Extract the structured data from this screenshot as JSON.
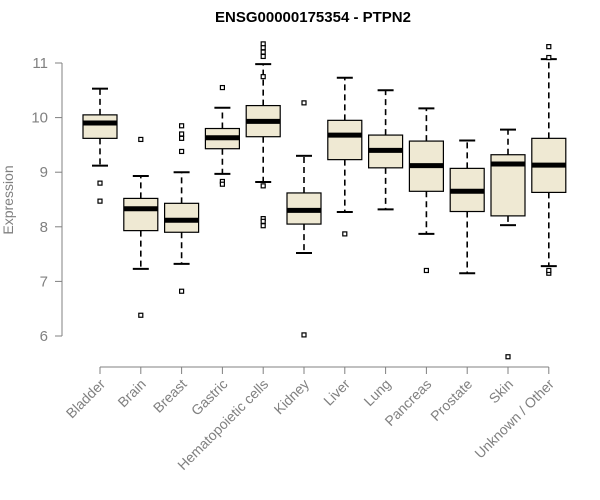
{
  "chart_data": {
    "type": "boxplot",
    "title": "ENSG00000175354 - PTPN2",
    "xlabel": "",
    "ylabel": "Expression",
    "ylim": [
      5.5,
      11.5
    ],
    "yticks": [
      6,
      7,
      8,
      9,
      10,
      11
    ],
    "box_fill": "#efe9d3",
    "axis_color": "#808080",
    "categories": [
      "Bladder",
      "Brain",
      "Breast",
      "Gastric",
      "Hematopoietic cells",
      "Kidney",
      "Liver",
      "Lung",
      "Pancreas",
      "Prostate",
      "Skin",
      "Unknown / Other"
    ],
    "series": [
      {
        "name": "Bladder",
        "whisker_low": 9.12,
        "q1": 9.62,
        "median": 9.9,
        "q3": 10.05,
        "whisker_high": 10.53,
        "outliers": [
          8.8,
          8.47
        ]
      },
      {
        "name": "Brain",
        "whisker_low": 7.23,
        "q1": 7.93,
        "median": 8.33,
        "q3": 8.52,
        "whisker_high": 8.93,
        "outliers": [
          9.6,
          6.38
        ]
      },
      {
        "name": "Breast",
        "whisker_low": 7.32,
        "q1": 7.9,
        "median": 8.12,
        "q3": 8.43,
        "whisker_high": 9.0,
        "outliers": [
          9.38,
          9.62,
          9.7,
          9.85,
          6.82
        ]
      },
      {
        "name": "Gastric",
        "whisker_low": 8.97,
        "q1": 9.43,
        "median": 9.63,
        "q3": 9.8,
        "whisker_high": 10.18,
        "outliers": [
          10.55,
          8.83,
          8.78
        ]
      },
      {
        "name": "Hematopoietic cells",
        "whisker_low": 8.82,
        "q1": 9.65,
        "median": 9.93,
        "q3": 10.22,
        "whisker_high": 10.98,
        "outliers": [
          11.35,
          11.28,
          11.2,
          11.12,
          10.75,
          8.75,
          8.15,
          8.1,
          8.02
        ]
      },
      {
        "name": "Kidney",
        "whisker_low": 7.52,
        "q1": 8.05,
        "median": 8.3,
        "q3": 8.62,
        "whisker_high": 9.3,
        "outliers": [
          10.27,
          6.02
        ]
      },
      {
        "name": "Liver",
        "whisker_low": 8.27,
        "q1": 9.23,
        "median": 9.68,
        "q3": 9.95,
        "whisker_high": 10.73,
        "outliers": [
          7.87
        ]
      },
      {
        "name": "Lung",
        "whisker_low": 8.32,
        "q1": 9.08,
        "median": 9.4,
        "q3": 9.68,
        "whisker_high": 10.5,
        "outliers": []
      },
      {
        "name": "Pancreas",
        "whisker_low": 7.87,
        "q1": 8.65,
        "median": 9.12,
        "q3": 9.57,
        "whisker_high": 10.17,
        "outliers": [
          7.2
        ]
      },
      {
        "name": "Prostate",
        "whisker_low": 7.15,
        "q1": 8.28,
        "median": 8.65,
        "q3": 9.07,
        "whisker_high": 9.58,
        "outliers": []
      },
      {
        "name": "Skin",
        "whisker_low": 8.03,
        "q1": 8.2,
        "median": 9.15,
        "q3": 9.32,
        "whisker_high": 9.78,
        "outliers": [
          5.62
        ]
      },
      {
        "name": "Unknown / Other",
        "whisker_low": 7.28,
        "q1": 8.63,
        "median": 9.13,
        "q3": 9.62,
        "whisker_high": 11.07,
        "outliers": [
          11.3,
          11.1,
          7.15,
          7.2
        ]
      }
    ]
  }
}
